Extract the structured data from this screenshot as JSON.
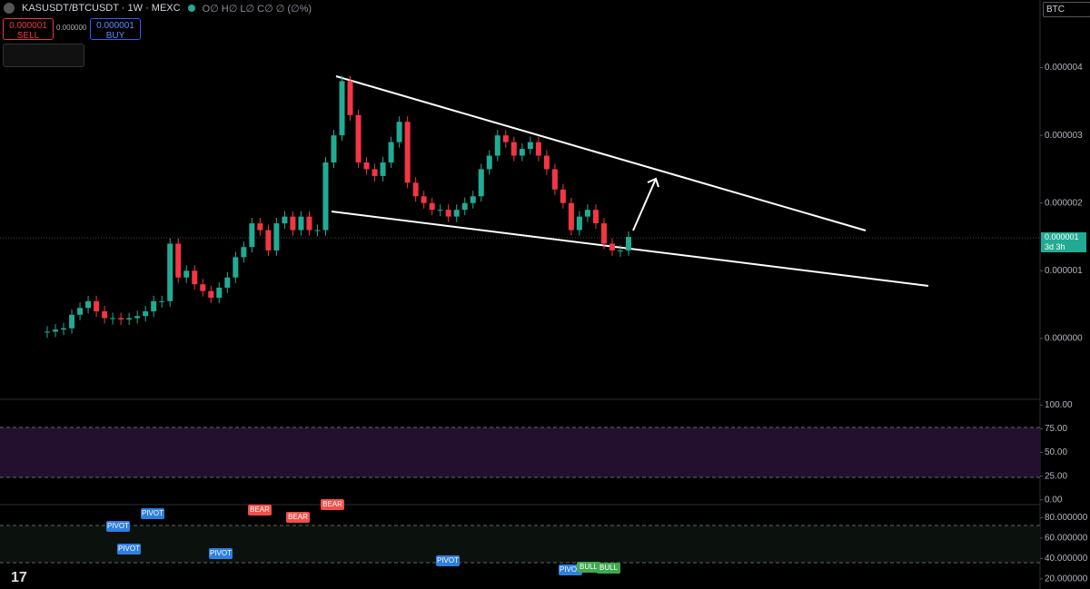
{
  "header": {
    "symbol": "KASUSDT/BTCUSDT · 1W · MEXC",
    "ohlc": "O∅ H∅ L∅ C∅ ∅ (∅%)",
    "currency": "BTC"
  },
  "trade": {
    "sell_price": "0.000001",
    "sell_label": "SELL",
    "spread": "0.000000",
    "buy_price": "0.000001",
    "buy_label": "BUY"
  },
  "price_axis": {
    "last_price": "0.000001",
    "countdown": "3d 3h"
  },
  "chart_data": {
    "type": "candlestick",
    "ylim": [
      -9e-07,
      5e-06
    ],
    "yticks": [
      {
        "value": 4e-06,
        "label": "0.000004"
      },
      {
        "value": 3e-06,
        "label": "0.000003"
      },
      {
        "value": 2e-06,
        "label": "0.000002"
      },
      {
        "value": 1e-06,
        "label": "0.000001"
      },
      {
        "value": 0,
        "label": "0.000000"
      }
    ],
    "up_color": "#22ab94",
    "down_color": "#f23645",
    "values": [
      1e-07,
      1.3e-07,
      1.5e-07,
      3.5e-07,
      4.5e-07,
      5.5e-07,
      4e-07,
      3e-07,
      3e-07,
      2.8e-07,
      3e-07,
      3.3e-07,
      4e-07,
      5.5e-07,
      5.5e-07,
      1.4e-06,
      9e-07,
      1e-06,
      8e-07,
      7e-07,
      6e-07,
      7.5e-07,
      9e-07,
      1.2e-06,
      1.35e-06,
      1.7e-06,
      1.6e-06,
      1.3e-06,
      1.7e-06,
      1.8e-06,
      1.6e-06,
      1.8e-06,
      1.6e-06,
      1.6e-06,
      2.6e-06,
      3e-06,
      3.8e-06,
      3.3e-06,
      2.6e-06,
      2.5e-06,
      2.4e-06,
      2.6e-06,
      2.9e-06,
      3.2e-06,
      2.3e-06,
      2.1e-06,
      2e-06,
      1.9e-06,
      1.9e-06,
      1.8e-06,
      1.9e-06,
      2e-06,
      2.1e-06,
      2.5e-06,
      2.7e-06,
      3e-06,
      2.9e-06,
      2.7e-06,
      2.8e-06,
      2.9e-06,
      2.7e-06,
      2.5e-06,
      2.2e-06,
      2e-06,
      1.6e-06,
      1.8e-06,
      1.9e-06,
      1.7e-06,
      1.4e-06,
      1.3e-06,
      1.3e-06,
      1.5e-06
    ]
  },
  "stoch_axis": {
    "ylim": [
      -5,
      105
    ],
    "yticks": [
      {
        "value": 100,
        "label": "100.00"
      },
      {
        "value": 75,
        "label": "75.00"
      },
      {
        "value": 50,
        "label": "50.00"
      },
      {
        "value": 25,
        "label": "25.00"
      },
      {
        "value": 0,
        "label": "0.00"
      }
    ]
  },
  "rsi_axis": {
    "ylim": [
      10,
      92
    ],
    "yticks": [
      {
        "value": 80,
        "label": "80.000000"
      },
      {
        "value": 60,
        "label": "60.000000"
      },
      {
        "value": 40,
        "label": "40.000000"
      },
      {
        "value": 20,
        "label": "20.000000"
      }
    ]
  },
  "signals": [
    "PIVOT",
    "PIVOT",
    "PIVOT",
    "PIVOT",
    "BEAR",
    "BEAR",
    "BEAR",
    "PIVOT",
    "PIVOT",
    "BULL",
    "BULL"
  ]
}
